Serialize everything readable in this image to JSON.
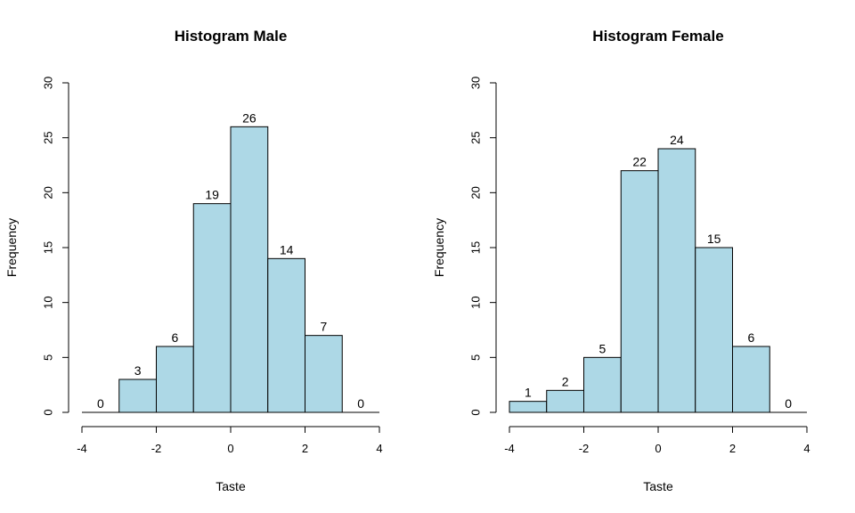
{
  "chart_data": [
    {
      "type": "bar",
      "title": "Histogram Male",
      "xlabel": "Taste",
      "ylabel": "Frequency",
      "bin_edges": [
        -4,
        -3,
        -2,
        -1,
        0,
        1,
        2,
        3,
        4
      ],
      "values": [
        0,
        3,
        6,
        19,
        26,
        14,
        7,
        0
      ],
      "labels": [
        "0",
        "3",
        "6",
        "19",
        "26",
        "14",
        "7",
        "0"
      ],
      "xlim": [
        -4,
        4
      ],
      "ylim": [
        0,
        30
      ],
      "xticks": [
        -4,
        -2,
        0,
        2,
        4
      ],
      "xtick_labels": [
        "-4",
        "-2",
        "0",
        "2",
        "4"
      ],
      "yticks": [
        0,
        5,
        10,
        15,
        20,
        25,
        30
      ],
      "ytick_labels": [
        "0",
        "5",
        "10",
        "15",
        "20",
        "25",
        "30"
      ],
      "bar_color": "#add8e6",
      "grid": false
    },
    {
      "type": "bar",
      "title": "Histogram Female",
      "xlabel": "Taste",
      "ylabel": "Frequency",
      "bin_edges": [
        -4,
        -3,
        -2,
        -1,
        0,
        1,
        2,
        3,
        4
      ],
      "values": [
        1,
        2,
        5,
        22,
        24,
        15,
        6,
        0
      ],
      "labels": [
        "1",
        "2",
        "5",
        "22",
        "24",
        "15",
        "6",
        "0"
      ],
      "xlim": [
        -4,
        4
      ],
      "ylim": [
        0,
        30
      ],
      "xticks": [
        -4,
        -2,
        0,
        2,
        4
      ],
      "xtick_labels": [
        "-4",
        "-2",
        "0",
        "2",
        "4"
      ],
      "yticks": [
        0,
        5,
        10,
        15,
        20,
        25,
        30
      ],
      "ytick_labels": [
        "0",
        "5",
        "10",
        "15",
        "20",
        "25",
        "30"
      ],
      "bar_color": "#add8e6",
      "grid": false
    }
  ]
}
